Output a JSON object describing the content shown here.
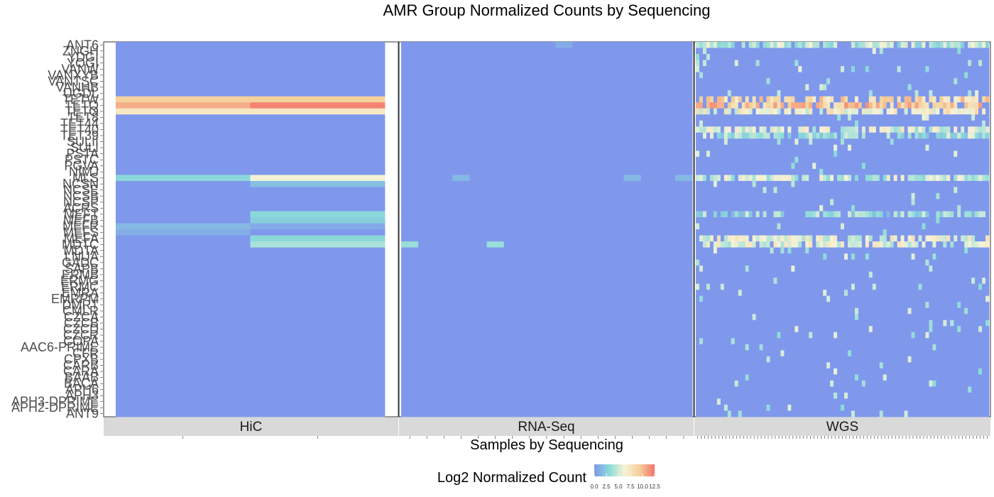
{
  "chart_data": {
    "type": "heatmap",
    "title": "AMR Group Normalized Counts by Sequencing",
    "xlabel": "Samples by Sequencing",
    "ylabel": "",
    "legend": {
      "title": "Log2 Normalized Count",
      "position": "bottom",
      "ticks": [
        "0.0",
        "2.5",
        "5.0",
        "7.5",
        "10.0",
        "12.5"
      ],
      "range": [
        0,
        12.5
      ],
      "colors": [
        "#7f98ec",
        "#8bdbd9",
        "#f6f3d7",
        "#f5cf9a",
        "#f4746a"
      ]
    },
    "y_categories": [
      "ANT6",
      "ZNGH",
      "YDGI",
      "YOGI",
      "VANW",
      "VANXYB",
      "VANTSC",
      "VANHB",
      "UGDL",
      "TETW",
      "TETQ",
      "TETO",
      "TET8",
      "TET44",
      "TET40",
      "TET39",
      "SULII",
      "SULI",
      "PSTA",
      "PSTC",
      "PGVA",
      "NIMJ",
      "MLS",
      "NCSN",
      "NCSE",
      "NCSB",
      "NCSP",
      "ACRS",
      "MEFT",
      "MEFB",
      "MEFR",
      "MEFS",
      "MEFA",
      "MDTC",
      "MDTA",
      "LNUA",
      "GADC",
      "SAPB",
      "ERMB",
      "ERMG",
      "ERMC",
      "EMRA",
      "EMRPM",
      "DMRT",
      "CMLR",
      "CZCA",
      "CZCB",
      "CZCD",
      "CZCR",
      "COPA",
      "AAC6-PRIME",
      "CFR",
      "CPXB",
      "CARB",
      "CARA",
      "BAAB",
      "BACA",
      "APH6",
      "APH3",
      "APH3-DPRIME",
      "APH2-DPRIME",
      "ANT9"
    ],
    "facets": [
      {
        "name": "HiC",
        "n_samples": 2
      },
      {
        "name": "RNA-Seq",
        "n_samples": 17
      },
      {
        "name": "WGS",
        "n_samples": 83
      }
    ],
    "nonzero_cells": [
      {
        "facet": "HiC",
        "row": "TETW",
        "values": [
          9.2,
          9.2
        ]
      },
      {
        "facet": "HiC",
        "row": "TETQ",
        "values": [
          10.5,
          12.0
        ]
      },
      {
        "facet": "HiC",
        "row": "TETO",
        "values": [
          7.2,
          7.2
        ]
      },
      {
        "facet": "HiC",
        "row": "MLS",
        "values": [
          3.0,
          6.2
        ]
      },
      {
        "facet": "HiC",
        "row": "NCSN",
        "values": [
          0.0,
          1.8
        ]
      },
      {
        "facet": "HiC",
        "row": "MEFT",
        "values": [
          0.0,
          3.0
        ]
      },
      {
        "facet": "HiC",
        "row": "MEFB",
        "values": [
          0.0,
          2.5
        ]
      },
      {
        "facet": "HiC",
        "row": "MEFR",
        "values": [
          1.5,
          0.9
        ]
      },
      {
        "facet": "HiC",
        "row": "MEFS",
        "values": [
          1.0,
          0.0
        ]
      },
      {
        "facet": "HiC",
        "row": "MEFA",
        "values": [
          0.0,
          3.0
        ]
      },
      {
        "facet": "HiC",
        "row": "MDTC",
        "values": [
          0.0,
          4.0
        ]
      },
      {
        "facet": "RNA-Seq",
        "row": "ANT6",
        "col": 9,
        "value": 1.0
      },
      {
        "facet": "RNA-Seq",
        "row": "MLS",
        "col": 3,
        "value": 1.5
      },
      {
        "facet": "RNA-Seq",
        "row": "MLS",
        "col": 13,
        "value": 1.5
      },
      {
        "facet": "RNA-Seq",
        "row": "MLS",
        "col": 16,
        "value": 1.5
      },
      {
        "facet": "RNA-Seq",
        "row": "MDTC",
        "col": 0,
        "value": 3.5
      },
      {
        "facet": "RNA-Seq",
        "row": "MDTC",
        "col": 5,
        "value": 3.5
      }
    ],
    "wgs_summary": [
      {
        "row": "ANT6",
        "level": 4.5
      },
      {
        "row": "TETW",
        "level": 8.5
      },
      {
        "row": "TETQ",
        "level": 9.5
      },
      {
        "row": "TETO",
        "level": 6.5
      },
      {
        "row": "TET40",
        "level": 5.5
      },
      {
        "row": "TET39",
        "level": 4.0
      },
      {
        "row": "MLS",
        "level": 5.0
      },
      {
        "row": "MEFT",
        "level": 3.5
      },
      {
        "row": "MEFA",
        "level": 6.0
      },
      {
        "row": "MDTC",
        "level": 5.5
      }
    ]
  }
}
